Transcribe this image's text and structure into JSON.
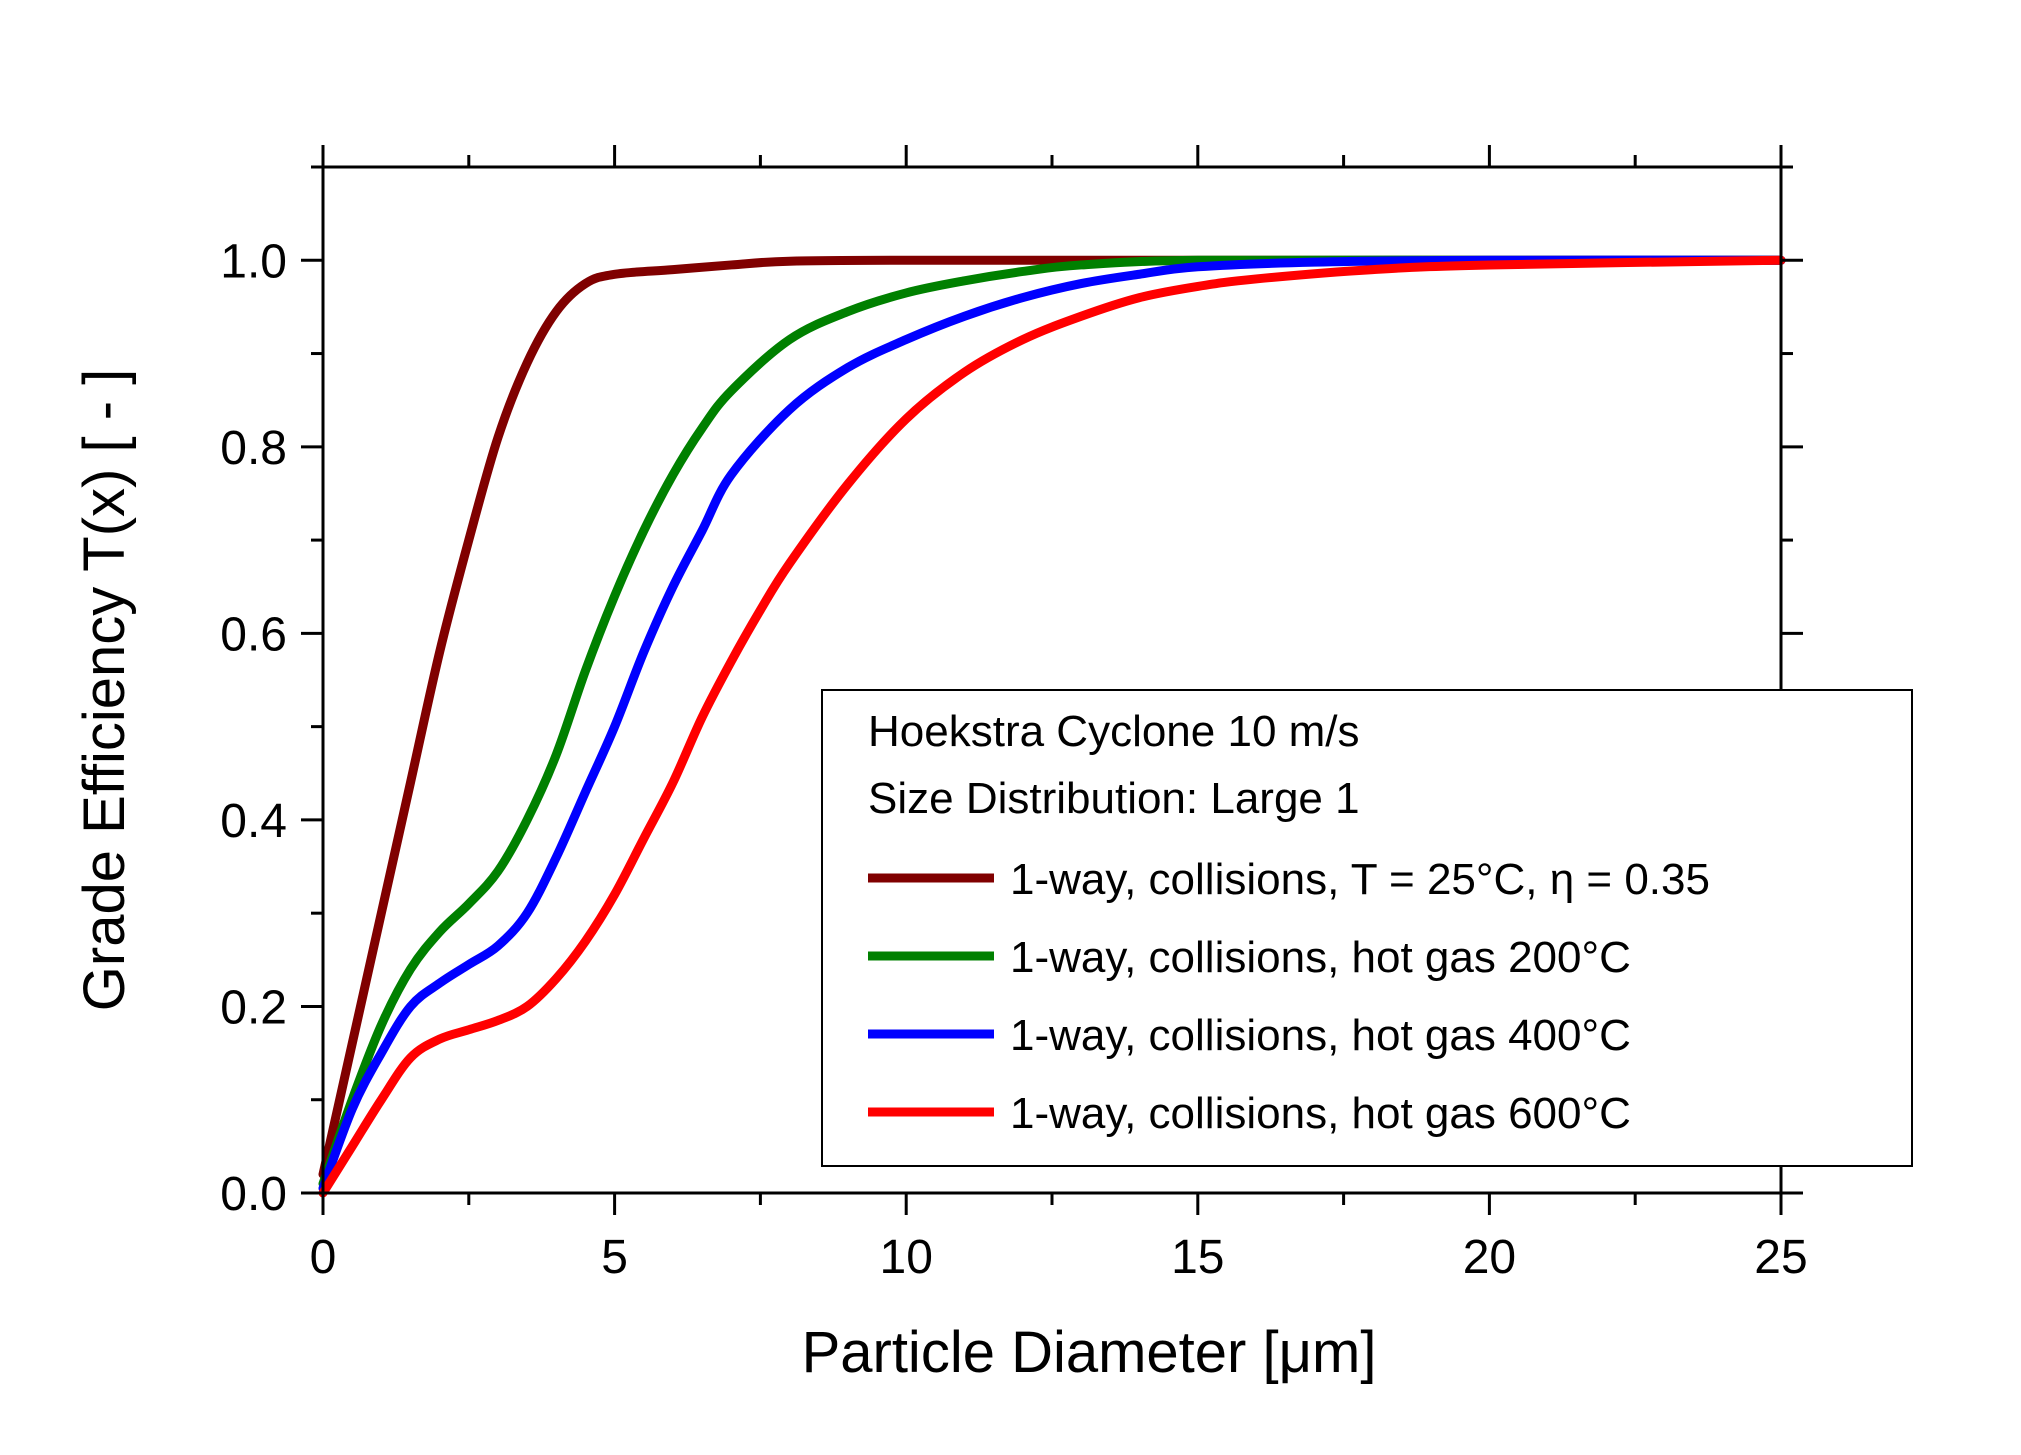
{
  "chart_data": {
    "type": "line",
    "title": "",
    "xlabel": "Particle Diameter [μm]",
    "ylabel": "Grade Efficiency T(x) [ - ]",
    "xlim": [
      0,
      25
    ],
    "ylim": [
      0,
      1.1
    ],
    "xticks": [
      0,
      5,
      10,
      15,
      20,
      25
    ],
    "yticks": [
      0.0,
      0.2,
      0.4,
      0.6,
      0.8,
      1.0
    ],
    "xtick_labels": [
      "0",
      "5",
      "10",
      "15",
      "20",
      "25"
    ],
    "ytick_labels": [
      "0.0",
      "0.2",
      "0.4",
      "0.6",
      "0.8",
      "1.0"
    ],
    "grid": false,
    "legend_position": "bottom-right",
    "legend_header": [
      "Hoekstra Cyclone 10 m/s",
      "Size Distribution: Large 1"
    ],
    "series": [
      {
        "name": "1-way, collisions, T = 25°C, η = 0.35",
        "color": "#800000",
        "points": [
          [
            0,
            0.02
          ],
          [
            0.5,
            0.16
          ],
          [
            1,
            0.3
          ],
          [
            1.5,
            0.44
          ],
          [
            2,
            0.58
          ],
          [
            2.5,
            0.7
          ],
          [
            3,
            0.81
          ],
          [
            3.5,
            0.89
          ],
          [
            4,
            0.945
          ],
          [
            4.5,
            0.975
          ],
          [
            5,
            0.985
          ],
          [
            6,
            0.99
          ],
          [
            7,
            0.995
          ],
          [
            8,
            0.999
          ],
          [
            10,
            1.0
          ],
          [
            15,
            1.0
          ],
          [
            20,
            1.0
          ],
          [
            25,
            1.0
          ]
        ]
      },
      {
        "name": "1-way, collisions, hot gas 200°C",
        "color": "#008000",
        "points": [
          [
            0,
            0.01
          ],
          [
            0.5,
            0.1
          ],
          [
            1,
            0.18
          ],
          [
            1.5,
            0.24
          ],
          [
            2,
            0.28
          ],
          [
            2.5,
            0.31
          ],
          [
            3,
            0.345
          ],
          [
            3.5,
            0.4
          ],
          [
            4,
            0.47
          ],
          [
            4.5,
            0.56
          ],
          [
            5,
            0.64
          ],
          [
            5.5,
            0.71
          ],
          [
            6,
            0.77
          ],
          [
            6.5,
            0.82
          ],
          [
            7,
            0.86
          ],
          [
            8,
            0.915
          ],
          [
            9,
            0.945
          ],
          [
            10,
            0.965
          ],
          [
            11,
            0.978
          ],
          [
            12,
            0.988
          ],
          [
            13,
            0.995
          ],
          [
            15,
            1.0
          ],
          [
            20,
            1.0
          ],
          [
            25,
            1.0
          ]
        ]
      },
      {
        "name": "1-way, collisions, hot gas 400°C",
        "color": "#0000ff",
        "points": [
          [
            0,
            0.005
          ],
          [
            0.5,
            0.09
          ],
          [
            1,
            0.15
          ],
          [
            1.5,
            0.2
          ],
          [
            2,
            0.225
          ],
          [
            2.5,
            0.245
          ],
          [
            3,
            0.265
          ],
          [
            3.5,
            0.3
          ],
          [
            4,
            0.36
          ],
          [
            4.5,
            0.43
          ],
          [
            5,
            0.5
          ],
          [
            5.5,
            0.58
          ],
          [
            6,
            0.65
          ],
          [
            6.5,
            0.71
          ],
          [
            7,
            0.77
          ],
          [
            8,
            0.84
          ],
          [
            9,
            0.885
          ],
          [
            10,
            0.915
          ],
          [
            11,
            0.94
          ],
          [
            12,
            0.96
          ],
          [
            13,
            0.975
          ],
          [
            14,
            0.985
          ],
          [
            15,
            0.993
          ],
          [
            17,
            0.998
          ],
          [
            20,
            1.0
          ],
          [
            25,
            1.0
          ]
        ]
      },
      {
        "name": "1-way, collisions, hot gas 600°C",
        "color": "#ff0000",
        "points": [
          [
            0,
            0.0
          ],
          [
            0.5,
            0.05
          ],
          [
            1,
            0.1
          ],
          [
            1.5,
            0.145
          ],
          [
            2,
            0.165
          ],
          [
            2.5,
            0.175
          ],
          [
            3,
            0.185
          ],
          [
            3.5,
            0.2
          ],
          [
            4,
            0.23
          ],
          [
            4.5,
            0.27
          ],
          [
            5,
            0.32
          ],
          [
            5.5,
            0.38
          ],
          [
            6,
            0.44
          ],
          [
            6.5,
            0.51
          ],
          [
            7,
            0.57
          ],
          [
            7.5,
            0.625
          ],
          [
            8,
            0.675
          ],
          [
            9,
            0.76
          ],
          [
            10,
            0.83
          ],
          [
            11,
            0.88
          ],
          [
            12,
            0.915
          ],
          [
            13,
            0.94
          ],
          [
            14,
            0.96
          ],
          [
            15,
            0.972
          ],
          [
            16,
            0.98
          ],
          [
            18,
            0.99
          ],
          [
            20,
            0.995
          ],
          [
            25,
            1.0
          ]
        ]
      }
    ]
  }
}
